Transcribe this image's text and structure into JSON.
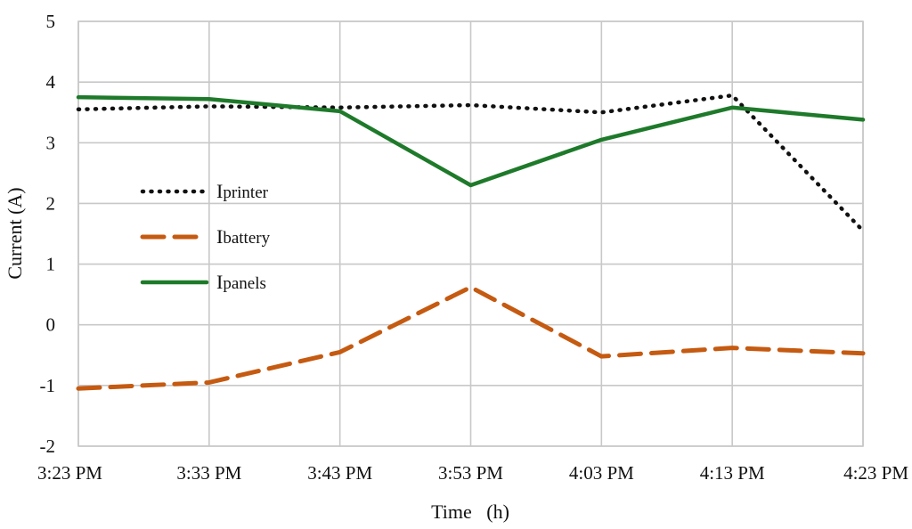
{
  "chart_data": {
    "type": "line",
    "categories": [
      "3:23 PM",
      "3:33 PM",
      "3:43 PM",
      "3:53 PM",
      "4:03 PM",
      "4:13 PM",
      "4:23 PM"
    ],
    "series": [
      {
        "name": "Iprinter",
        "legend_prefix": "I",
        "legend_rest": "printer",
        "color": "#111111",
        "style": "dotted",
        "values": [
          3.55,
          3.6,
          3.58,
          3.62,
          3.5,
          3.78,
          1.55
        ]
      },
      {
        "name": "Ibattery",
        "legend_prefix": "I",
        "legend_rest": "battery",
        "color": "#c55a11",
        "style": "dashed",
        "values": [
          -1.05,
          -0.95,
          -0.45,
          0.62,
          -0.52,
          -0.38,
          -0.47
        ]
      },
      {
        "name": "Ipanels",
        "legend_prefix": "I",
        "legend_rest": "panels",
        "color": "#1e7a2a",
        "style": "solid",
        "values": [
          3.75,
          3.72,
          3.52,
          2.3,
          3.05,
          3.58,
          3.38
        ]
      }
    ],
    "xlabel": "Time   (h)",
    "ylabel": "Current (A)",
    "ylim": [
      -2,
      5
    ],
    "yticks": [
      -2,
      -1,
      0,
      1,
      2,
      3,
      4,
      5
    ],
    "grid": true,
    "legend_position": "center-left"
  }
}
